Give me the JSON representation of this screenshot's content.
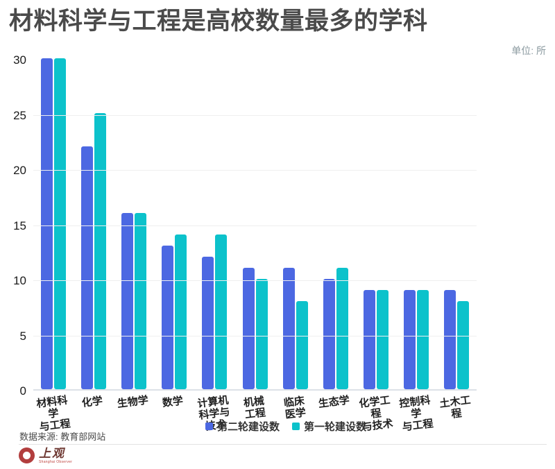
{
  "source": "数据来源: 教育部网站",
  "logo": {
    "name": "上观",
    "subtext": "Shanghai Observer"
  },
  "chart_data": {
    "type": "bar",
    "title": "材料科学与工程是高校数量最多的学科",
    "unit": "单位: 所",
    "categories": [
      "材料科学\n与工程",
      "化学",
      "生物学",
      "数学",
      "计算机\n科学与技术",
      "机械\n工程",
      "临床\n医学",
      "生态学",
      "化学工程\n与技术",
      "控制科学\n与工程",
      "土木工程"
    ],
    "series": [
      {
        "name": "第二轮建设数",
        "color": "#4c68e2",
        "values": [
          30,
          22,
          16,
          13,
          12,
          11,
          11,
          10,
          9,
          9,
          9
        ]
      },
      {
        "name": "第一轮建设数",
        "color": "#0cc2cb",
        "values": [
          30,
          25,
          16,
          14,
          14,
          10,
          8,
          11,
          9,
          9,
          8
        ]
      }
    ],
    "ylim": [
      0,
      30
    ],
    "yticks": [
      0,
      5,
      10,
      15,
      20,
      25,
      30
    ],
    "grid": true,
    "legend_position": "bottom",
    "colors": {
      "axis_line": "#dce1e7",
      "gridline": "#efefef",
      "title_text": "#4a4a4a",
      "logo_red": "#b23e3e"
    }
  }
}
